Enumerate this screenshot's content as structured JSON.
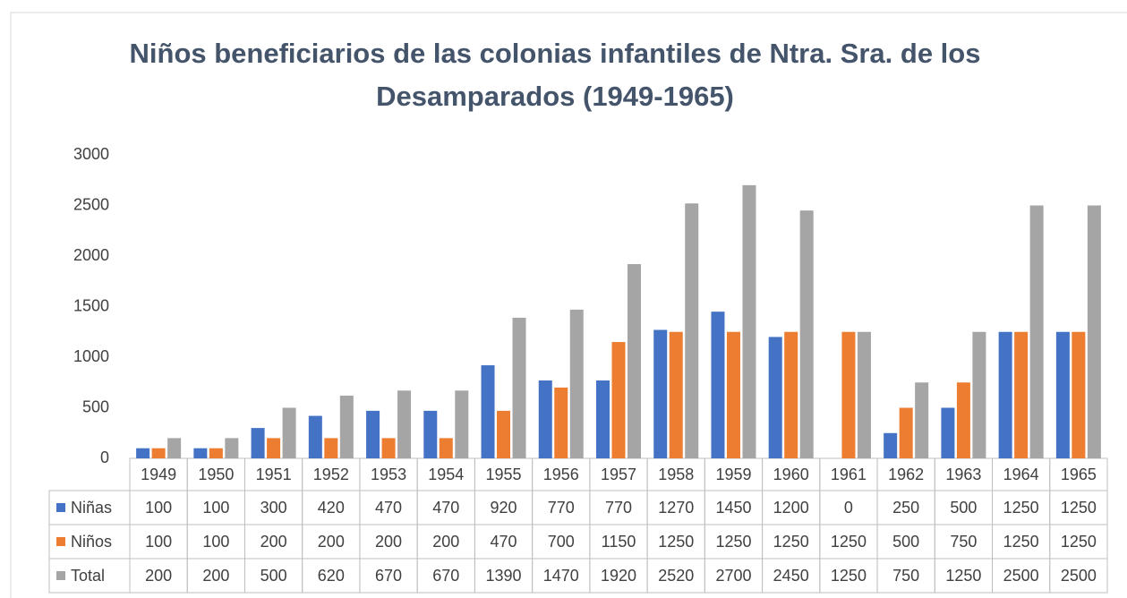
{
  "chart_data": {
    "type": "bar",
    "title": "Niños beneficiarios de las colonias infantiles de Ntra. Sra. de los Desamparados (1949-1965)",
    "categories": [
      "1949",
      "1950",
      "1951",
      "1952",
      "1953",
      "1954",
      "1955",
      "1956",
      "1957",
      "1958",
      "1959",
      "1960",
      "1961",
      "1962",
      "1963",
      "1964",
      "1965"
    ],
    "series": [
      {
        "name": "Niñas",
        "color": "#4472c4",
        "values": [
          100,
          100,
          300,
          420,
          470,
          470,
          920,
          770,
          770,
          1270,
          1450,
          1200,
          0,
          250,
          500,
          1250,
          1250
        ]
      },
      {
        "name": "Niños",
        "color": "#ed7d31",
        "values": [
          100,
          100,
          200,
          200,
          200,
          200,
          470,
          700,
          1150,
          1250,
          1250,
          1250,
          1250,
          500,
          750,
          1250,
          1250
        ]
      },
      {
        "name": "Total",
        "color": "#a5a5a5",
        "values": [
          200,
          200,
          500,
          620,
          670,
          670,
          1390,
          1470,
          1920,
          2520,
          2700,
          2450,
          1250,
          750,
          1250,
          2500,
          2500
        ]
      }
    ],
    "ylim": [
      0,
      3000
    ],
    "yticks": [
      0,
      500,
      1000,
      1500,
      2000,
      2500,
      3000
    ],
    "grid": false
  }
}
